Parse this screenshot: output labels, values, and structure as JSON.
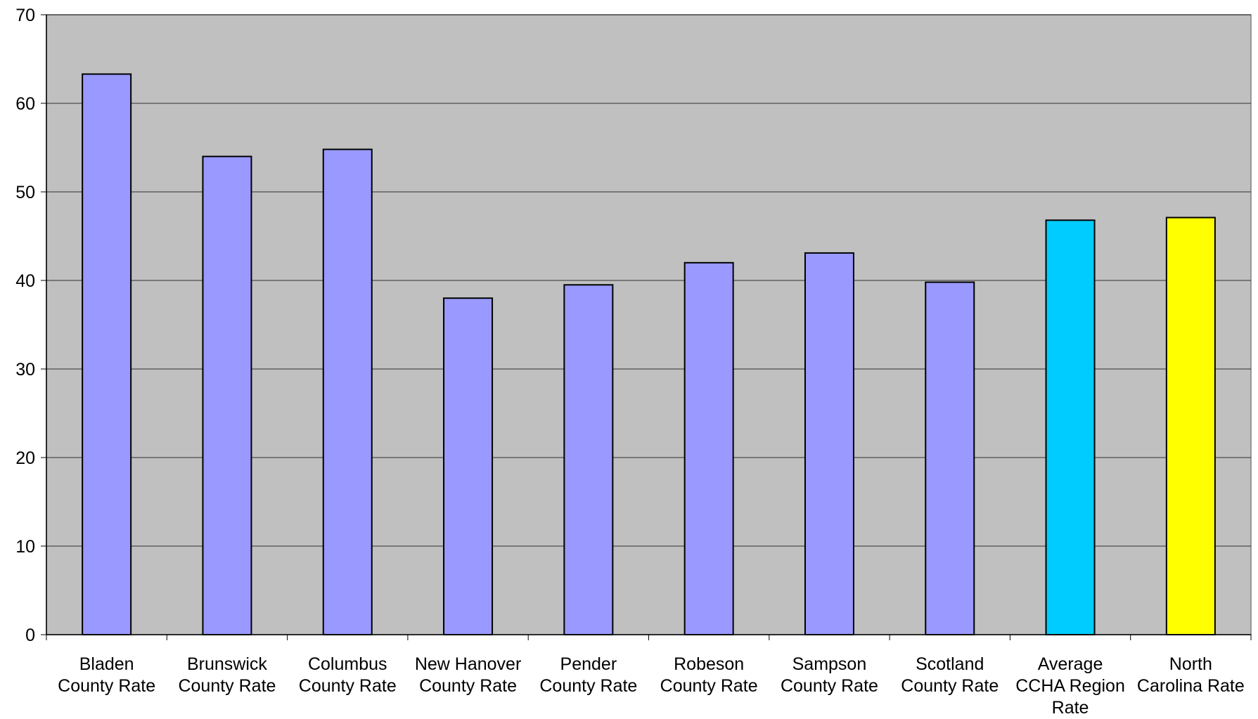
{
  "chart_data": {
    "type": "bar",
    "title": "",
    "xlabel": "",
    "ylabel": "",
    "ylim": [
      0,
      70
    ],
    "yticks": [
      0,
      10,
      20,
      30,
      40,
      50,
      60,
      70
    ],
    "grid": true,
    "legend": "none",
    "plot_background": "#c0c0c0",
    "categories": [
      [
        "Bladen",
        "County Rate"
      ],
      [
        "Brunswick",
        "County Rate"
      ],
      [
        "Columbus",
        "County Rate"
      ],
      [
        "New Hanover",
        "County Rate"
      ],
      [
        "Pender",
        "County Rate"
      ],
      [
        "Robeson",
        "County Rate"
      ],
      [
        "Sampson",
        "County Rate"
      ],
      [
        "Scotland",
        "County Rate"
      ],
      [
        "Average",
        "CCHA Region",
        "Rate"
      ],
      [
        "North",
        "Carolina Rate"
      ]
    ],
    "values": [
      63.3,
      54.0,
      54.8,
      38.0,
      39.5,
      42.0,
      43.1,
      39.8,
      46.8,
      47.1
    ],
    "colors": [
      "#9999ff",
      "#9999ff",
      "#9999ff",
      "#9999ff",
      "#9999ff",
      "#9999ff",
      "#9999ff",
      "#9999ff",
      "#00ccff",
      "#ffff00"
    ]
  }
}
